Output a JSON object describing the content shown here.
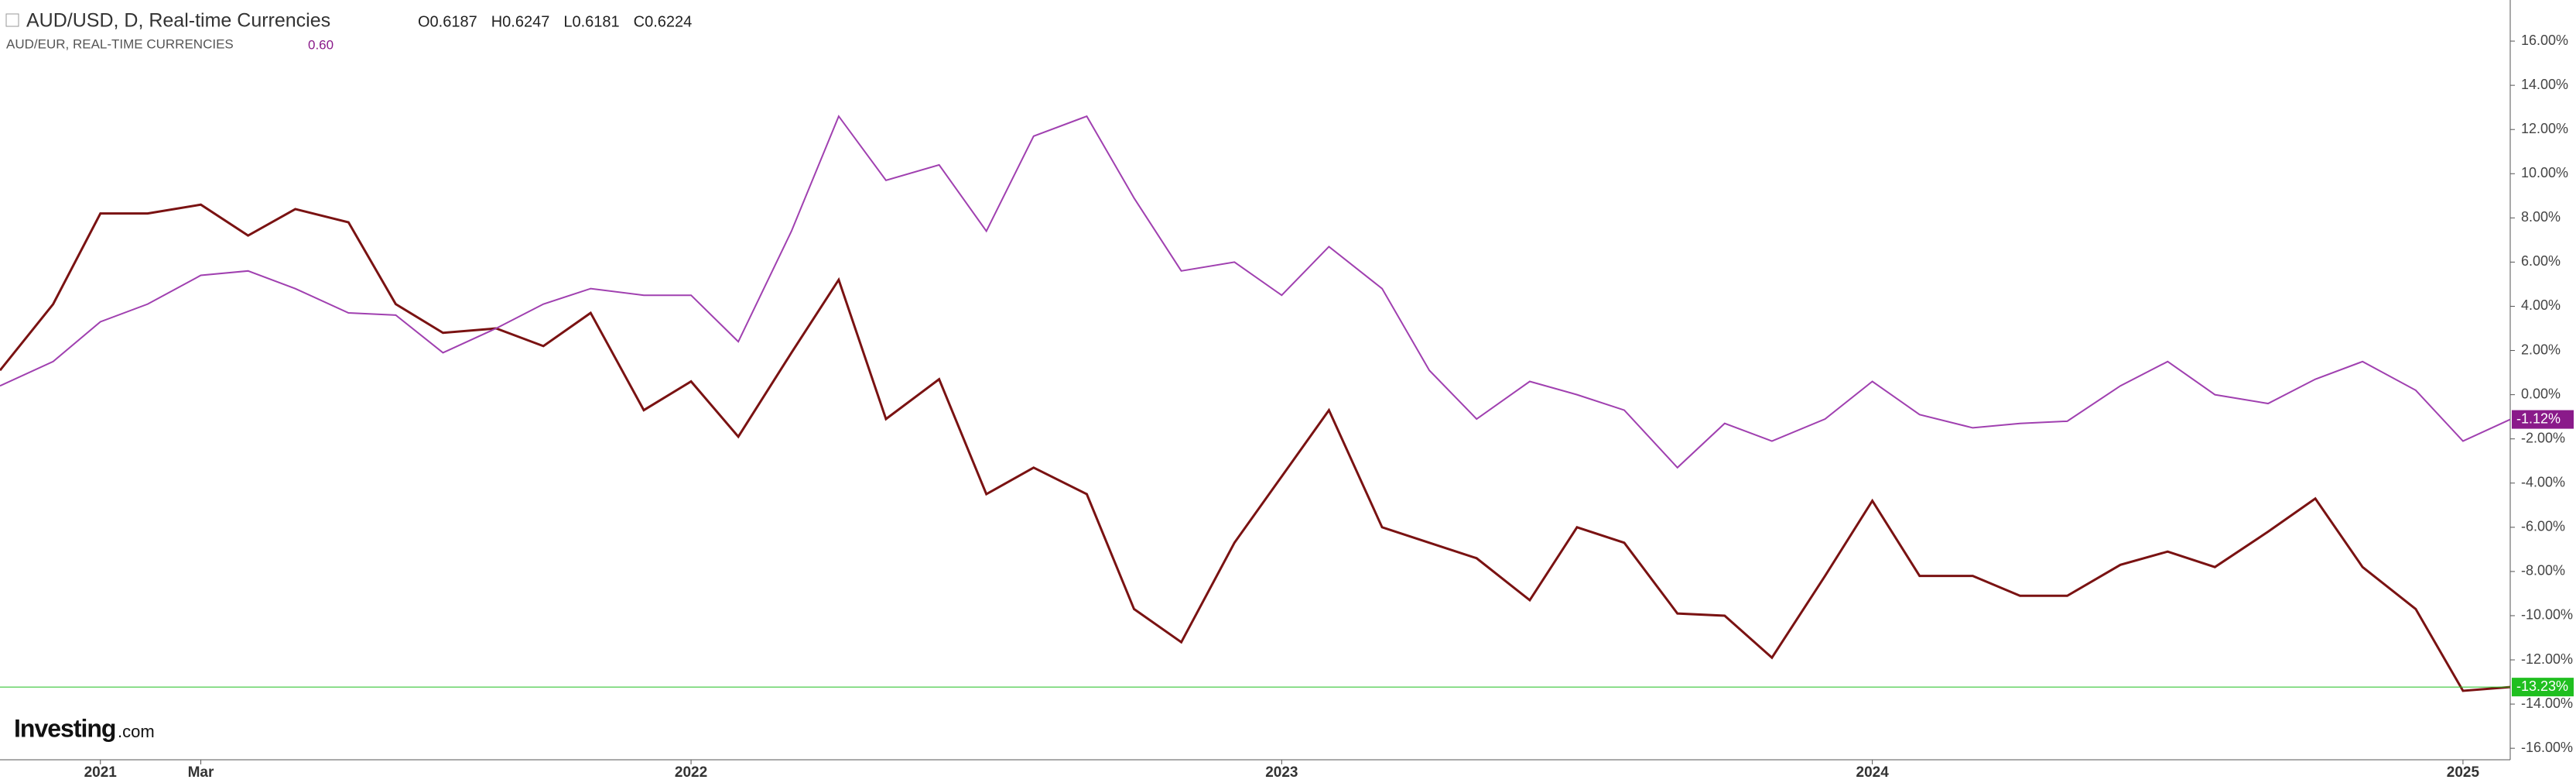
{
  "chart_data": {
    "type": "line",
    "title": "AUD/USD, D, Real-time Currencies",
    "ohlc": [
      "O0.6187",
      "H0.6247",
      "L0.6181",
      "C0.6224"
    ],
    "subtitle": "AUD/EUR, REAL-TIME CURRENCIES",
    "subtitle_value": "0.60",
    "logo": "Investing",
    "logo_suffix": ".com",
    "x": [
      2020.83,
      2020.92,
      2021.0,
      2021.08,
      2021.17,
      2021.25,
      2021.33,
      2021.42,
      2021.5,
      2021.58,
      2021.67,
      2021.75,
      2021.83,
      2021.92,
      2022.0,
      2022.08,
      2022.17,
      2022.25,
      2022.33,
      2022.42,
      2022.5,
      2022.58,
      2022.67,
      2022.75,
      2022.83,
      2022.92,
      2023.0,
      2023.08,
      2023.17,
      2023.25,
      2023.33,
      2023.42,
      2023.5,
      2023.58,
      2023.67,
      2023.75,
      2023.83,
      2023.92,
      2024.0,
      2024.08,
      2024.17,
      2024.25,
      2024.33,
      2024.42,
      2024.5,
      2024.58,
      2024.67,
      2024.75,
      2024.83,
      2024.92,
      2025.0,
      2025.08
    ],
    "series": [
      {
        "name": "AUD/USD",
        "color": "#7a1212",
        "label_color": "#1fbf1f",
        "last_label": "-13.23%",
        "values": [
          1.1,
          4.1,
          8.2,
          8.2,
          8.6,
          7.2,
          8.4,
          7.8,
          4.1,
          2.8,
          3.0,
          2.2,
          3.7,
          -0.7,
          0.6,
          -1.9,
          1.9,
          5.2,
          -1.1,
          0.7,
          -4.5,
          -3.3,
          -4.5,
          -9.7,
          -11.2,
          -6.7,
          -3.7,
          -0.7,
          -6.0,
          -6.7,
          -7.4,
          -9.3,
          -6.0,
          -6.7,
          -9.9,
          -10.0,
          -11.9,
          -8.2,
          -4.8,
          -8.2,
          -8.2,
          -9.1,
          -9.1,
          -7.7,
          -7.1,
          -7.8,
          -6.2,
          -4.7,
          -7.8,
          -9.7,
          -13.4,
          -13.23
        ]
      },
      {
        "name": "AUD/EUR",
        "color": "#a040b0",
        "label_color": "#8a1a8a",
        "last_label": "-1.12%",
        "values": [
          0.4,
          1.5,
          3.3,
          4.1,
          5.4,
          5.6,
          4.8,
          3.7,
          3.6,
          1.9,
          3.0,
          4.1,
          4.8,
          4.5,
          4.5,
          2.4,
          7.4,
          12.6,
          9.7,
          10.4,
          7.4,
          11.7,
          12.6,
          8.9,
          5.6,
          6.0,
          4.5,
          6.7,
          4.8,
          1.1,
          -1.1,
          0.6,
          0.0,
          -0.7,
          -3.3,
          -1.3,
          -2.1,
          -1.1,
          0.6,
          -0.9,
          -1.5,
          -1.3,
          -1.2,
          0.4,
          1.5,
          0.0,
          -0.4,
          0.7,
          1.5,
          0.2,
          -2.1,
          -1.12
        ]
      }
    ],
    "xlim": [
      2020.83,
      2025.08
    ],
    "xticks": [
      2021,
      {
        "value": 2021.17,
        "label": "Mar"
      },
      2022,
      2023,
      2024,
      2025
    ],
    "ylim": [
      -16.52,
      17.86
    ],
    "yticks": [
      {
        "value": -16,
        "label": "-16.00%"
      },
      {
        "value": -14,
        "label": "-14.00%"
      },
      {
        "value": -12,
        "label": "-12.00%"
      },
      {
        "value": -10,
        "label": "-10.00%"
      },
      {
        "value": -8,
        "label": "-8.00%"
      },
      {
        "value": -6,
        "label": "-6.00%"
      },
      {
        "value": -4,
        "label": "-4.00%"
      },
      {
        "value": -2,
        "label": "-2.00%"
      },
      {
        "value": 0,
        "label": "0.00%"
      },
      {
        "value": 2,
        "label": "2.00%"
      },
      {
        "value": 4,
        "label": "4.00%"
      },
      {
        "value": 6,
        "label": "6.00%"
      },
      {
        "value": 8,
        "label": "8.00%"
      },
      {
        "value": 10,
        "label": "10.00%"
      },
      {
        "value": 12,
        "label": "12.00%"
      },
      {
        "value": 14,
        "label": "14.00%"
      },
      {
        "value": 16,
        "label": "16.00%"
      }
    ],
    "grid": false
  }
}
